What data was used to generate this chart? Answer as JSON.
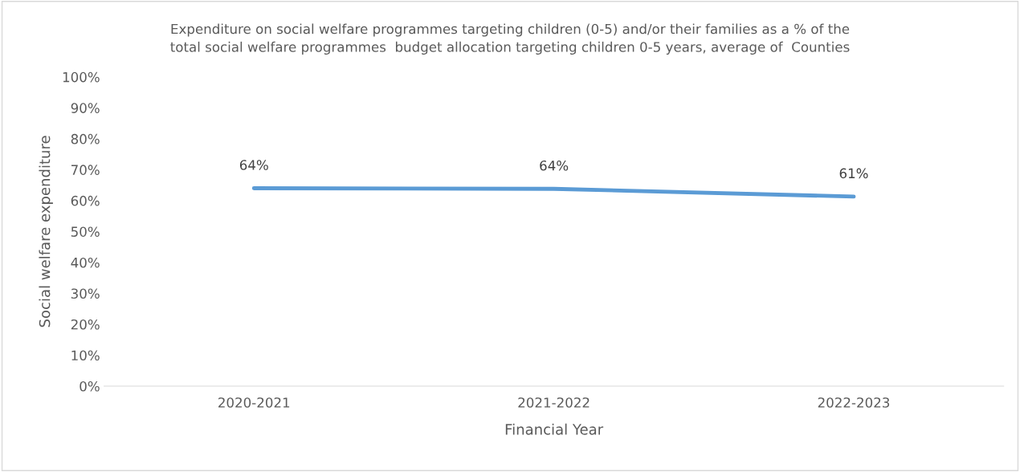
{
  "chart_data": {
    "type": "line",
    "title": "Expenditure on social welfare programmes targeting children (0-5) and/or their families as a % of the\ntotal social welfare programmes  budget allocation targeting children 0-5 years, average of  Counties",
    "xlabel": "Financial Year",
    "ylabel": "Social welfare expenditure",
    "categories": [
      "2020-2021",
      "2021-2022",
      "2022-2023"
    ],
    "series": [
      {
        "color": "#5b9bd5",
        "values": [
          64,
          63.8,
          61.3
        ],
        "value_labels": [
          "64%",
          "64%",
          "61%"
        ]
      }
    ],
    "ylim": [
      0,
      100
    ],
    "yticks": [
      {
        "value": 0,
        "label": "0%"
      },
      {
        "value": 10,
        "label": "10%"
      },
      {
        "value": 20,
        "label": "20%"
      },
      {
        "value": 30,
        "label": "30%"
      },
      {
        "value": 40,
        "label": "40%"
      },
      {
        "value": 50,
        "label": "50%"
      },
      {
        "value": 60,
        "label": "60%"
      },
      {
        "value": 70,
        "label": "70%"
      },
      {
        "value": 80,
        "label": "80%"
      },
      {
        "value": 90,
        "label": "90%"
      },
      {
        "value": 100,
        "label": "100%"
      }
    ],
    "grid": false,
    "marker": "none",
    "line_style": "solid"
  }
}
